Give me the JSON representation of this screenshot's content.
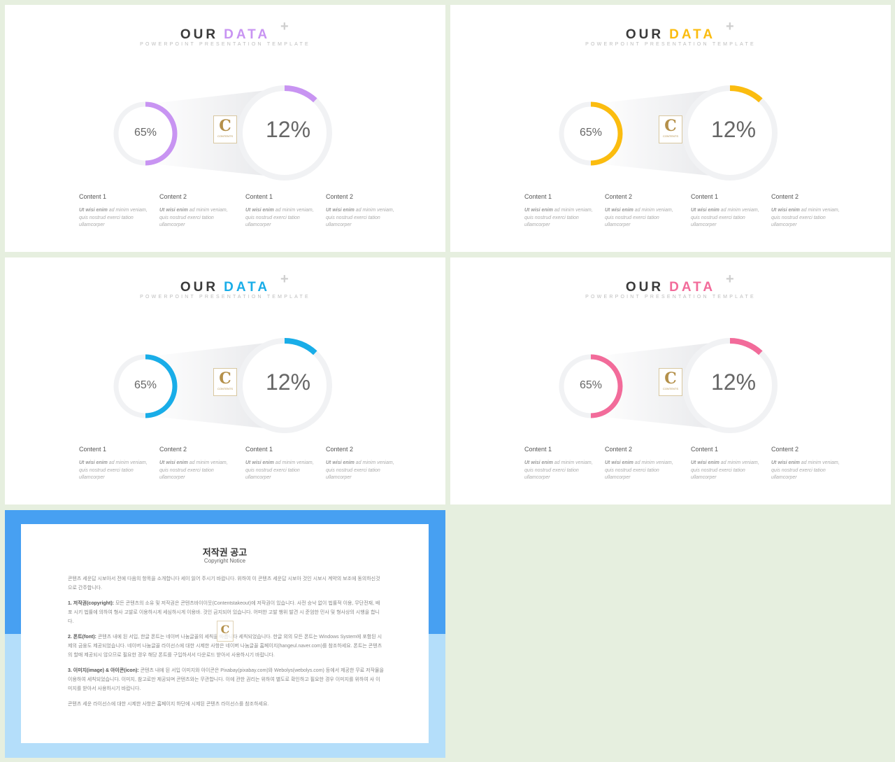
{
  "slides": [
    {
      "title_word": "OUR",
      "title_accent": "DATA",
      "subtitle": "POWERPOINT PRESENTATION TEMPLATE",
      "accent": "#c894f2",
      "small_pct": "65%",
      "big_pct": "12%",
      "small_value": 65,
      "big_value": 12,
      "logo_letter": "C",
      "logo_text": "CONTENTS",
      "columns": [
        {
          "title": "Content 1",
          "bold": "Ut wisi enim",
          "text": " ad minim veniam, quis nostrud exerci tation ullamcorper"
        },
        {
          "title": "Content 2",
          "bold": "Ut wisi enim",
          "text": " ad minim veniam, quis nostrud exerci tation ullamcorper"
        },
        {
          "title": "Content 1",
          "bold": "Ut wisi enim",
          "text": " ad minim veniam, quis nostrud exerci tation ullamcorper"
        },
        {
          "title": "Content 2",
          "bold": "Ut wisi enim",
          "text": " ad minim veniam, quis nostrud exerci tation ullamcorper"
        }
      ]
    },
    {
      "title_word": "OUR",
      "title_accent": "DATA",
      "subtitle": "POWERPOINT PRESENTATION TEMPLATE",
      "accent": "#fbbc0f",
      "small_pct": "65%",
      "big_pct": "12%",
      "small_value": 65,
      "big_value": 12,
      "logo_letter": "C",
      "logo_text": "CONTENTS",
      "columns": [
        {
          "title": "Content 1",
          "bold": "Ut wisi enim",
          "text": " ad minim veniam, quis nostrud exerci tation ullamcorper"
        },
        {
          "title": "Content 2",
          "bold": "Ut wisi enim",
          "text": " ad minim veniam, quis nostrud exerci tation ullamcorper"
        },
        {
          "title": "Content 1",
          "bold": "Ut wisi enim",
          "text": " ad minim veniam, quis nostrud exerci tation ullamcorper"
        },
        {
          "title": "Content 2",
          "bold": "Ut wisi enim",
          "text": " ad minim veniam, quis nostrud exerci tation ullamcorper"
        }
      ]
    },
    {
      "title_word": "OUR",
      "title_accent": "DATA",
      "subtitle": "POWERPOINT PRESENTATION TEMPLATE",
      "accent": "#19ade8",
      "small_pct": "65%",
      "big_pct": "12%",
      "small_value": 65,
      "big_value": 12,
      "logo_letter": "C",
      "logo_text": "CONTENTS",
      "columns": [
        {
          "title": "Content 1",
          "bold": "Ut wisi enim",
          "text": " ad minim veniam, quis nostrud exerci tation ullamcorper"
        },
        {
          "title": "Content 2",
          "bold": "Ut wisi enim",
          "text": " ad minim veniam, quis nostrud exerci tation ullamcorper"
        },
        {
          "title": "Content 1",
          "bold": "Ut wisi enim",
          "text": " ad minim veniam, quis nostrud exerci tation ullamcorper"
        },
        {
          "title": "Content 2",
          "bold": "Ut wisi enim",
          "text": " ad minim veniam, quis nostrud exerci tation ullamcorper"
        }
      ]
    },
    {
      "title_word": "OUR",
      "title_accent": "DATA",
      "subtitle": "POWERPOINT PRESENTATION TEMPLATE",
      "accent": "#f26b9a",
      "small_pct": "65%",
      "big_pct": "12%",
      "small_value": 65,
      "big_value": 12,
      "logo_letter": "C",
      "logo_text": "CONTENTS",
      "columns": [
        {
          "title": "Content 1",
          "bold": "Ut wisi enim",
          "text": " ad minim veniam, quis nostrud exerci tation ullamcorper"
        },
        {
          "title": "Content 2",
          "bold": "Ut wisi enim",
          "text": " ad minim veniam, quis nostrud exerci tation ullamcorper"
        },
        {
          "title": "Content 1",
          "bold": "Ut wisi enim",
          "text": " ad minim veniam, quis nostrud exerci tation ullamcorper"
        },
        {
          "title": "Content 2",
          "bold": "Ut wisi enim",
          "text": " ad minim veniam, quis nostrud exerci tation ullamcorper"
        }
      ]
    }
  ],
  "notice": {
    "title": "저작권 공고",
    "subtitle": "Copyright Notice",
    "logo_letter": "C",
    "paragraphs": [
      {
        "bold": "",
        "text": "콘텐츠 세운답 시보아서 전에 다음의 항목을 소개합니다 세이 읽어 주시기 바랍니다. 위하여 이 콘텐츠 세운답 시보아 것인 시보시 계약의 보조에 동의하신것으로 간주합니다."
      },
      {
        "bold": "1. 저작권(copyright): ",
        "text": "모든 콘텐츠의 소유 및 저작권은 콘텐츠바이이웃(Contentstakeout)에 저작권이 있습니다. 사전 승낙 없이 법률적 이용, 무단전재, 배포 시키 법률에 의하여 형사 고발로 이용하시게 세심하시게 이용바. 것인 금지되어 있습니다. 어떠한 고발 행위 발견 시 준엄한 민사 및 형사상의 시행을 합니다."
      },
      {
        "bold": "2. 폰트(font): ",
        "text": "콘텐츠 내에 된 서입, 한글 폰트는 네이버 나눔글꼴의 세칙을 따릅니다 세칙되었습니다. 한글 외의 모든 폰트는 Windows System에 포함된 시제의 금융도 제공되었습니다. 네이버 나눔글꼴 라이선스에 대한 시제한 사항은 네이버 나눔글꼴 홈페이지(hangeul.naver.com)를 참조하세요. 폰트는 콘텐츠의 할매 제공되시 않으므로 필요한 경우 해당 폰트를 구입하셔서 다운로드 받아서 사용하시기 바랍니다."
      },
      {
        "bold": "3. 이미지(image) & 아이콘(icon): ",
        "text": "콘텐츠 내에 된 서입 이미지와 아이콘은 Pixabay(pixabay.com)와 Webolys(webolys.com) 등에서 제공한 무료 저작물을 이용하여 세칙되었습니다. 이미지, 참고로만 제공되며 콘텐츠와는 무관합니다. 이에 관한 권리는 위하여 별도로 확인하고 필요한 경우 이미지를 위하여 사 이미지를 받아서 사용하시기 바랍니다."
      },
      {
        "bold": "",
        "text": "콘텐츠 세운 라이선스에 대한 시제한 사항은 홈페이지 하단에 시제된 콘텐츠 라이선스를 참조하세요."
      }
    ]
  }
}
